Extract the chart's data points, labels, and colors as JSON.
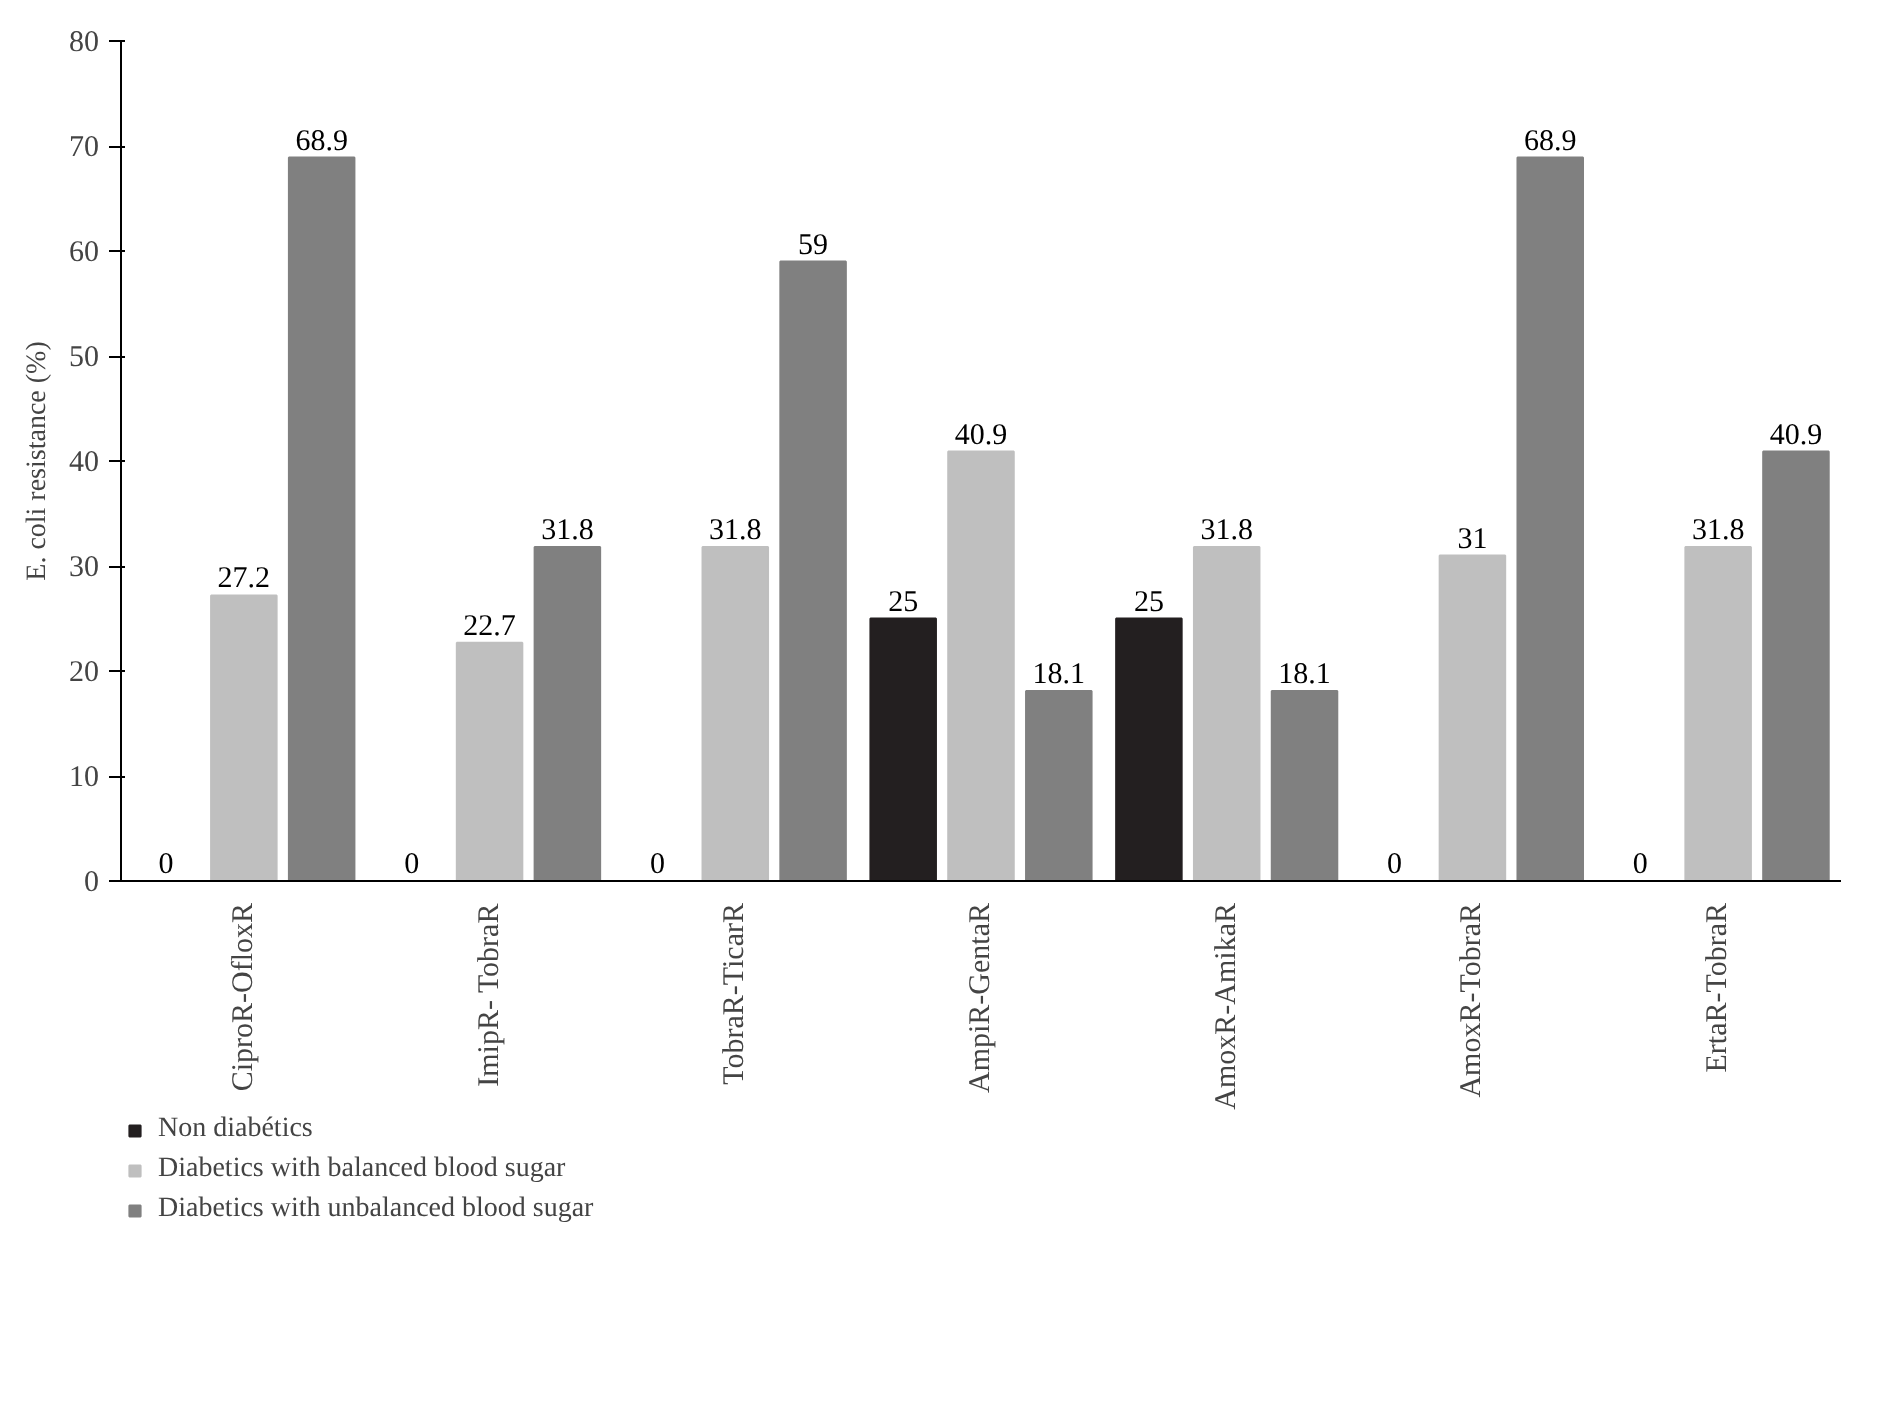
{
  "chart_data": {
    "type": "bar",
    "ylabel": "E. coli resistance (%)",
    "categories": [
      "CiproR-OfloxR",
      "ImipR- TobraR",
      "TobraR-TicarR",
      "AmpiR-GentaR",
      "AmoxR-AmikaR",
      "AmoxR-TobraR",
      "ErtaR-TobraR"
    ],
    "series": [
      {
        "name": "Non diabétics",
        "color": "#231f20",
        "values": [
          0,
          0,
          0,
          25,
          25,
          0,
          0
        ]
      },
      {
        "name": "Diabetics with balanced blood sugar",
        "color": "#bfbfbf",
        "values": [
          27.2,
          22.7,
          31.8,
          40.9,
          31.8,
          31,
          31.8
        ]
      },
      {
        "name": "Diabetics with unbalanced blood sugar",
        "color": "#808080",
        "values": [
          68.9,
          31.8,
          59,
          18.1,
          18.1,
          68.9,
          40.9
        ]
      }
    ],
    "ylim": [
      0,
      80
    ],
    "yticks": [
      0,
      10,
      20,
      30,
      40,
      50,
      60,
      70,
      80
    ],
    "data_labels": true,
    "grid": false,
    "legend": "bottom"
  }
}
